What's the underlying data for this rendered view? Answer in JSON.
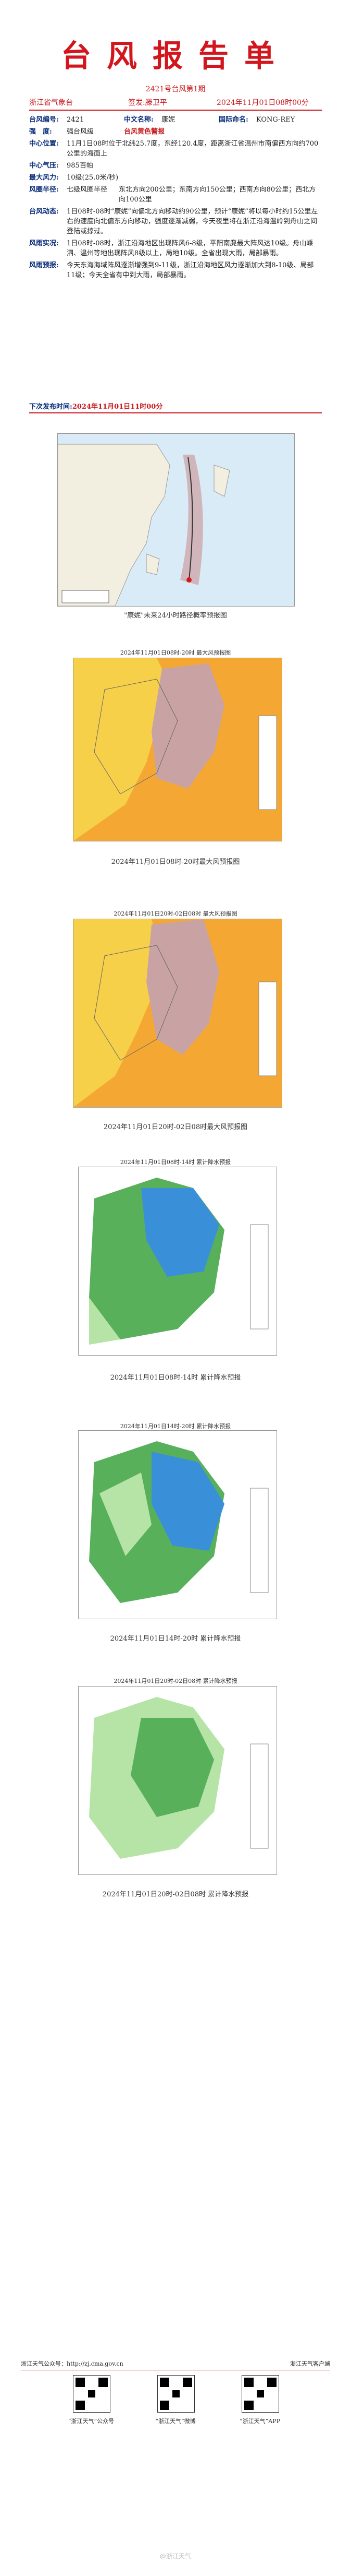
{
  "header": {
    "title": "台风报告单",
    "issue": "2421号台风第1期",
    "issuer": "浙江省气象台",
    "signer": "签发:滕卫平",
    "time": "2024年11月01日08时00分"
  },
  "info": {
    "number_label": "台风编号:",
    "number": "2421",
    "cn_name_label": "中文名称:",
    "cn_name": "康妮",
    "intl_name_label": "国际命名:",
    "intl_name": "KONG-REY",
    "strength_label": "强　度:",
    "strength": "强台风级",
    "warning": "台风黄色警报",
    "center_label": "中心位置:",
    "center": "11月1日08时位于北纬25.7度，东经120.4度，距离浙江省温州市南偏西方向约700公里的海面上",
    "pressure_label": "中心气压:",
    "pressure": "985百帕",
    "wind_label": "最大风力:",
    "wind": "10级(25.0米/秒)",
    "radius_label": "风圈半径:",
    "radius_1": "七级风圈半径",
    "radius_1_detail": "东北方向200公里；东南方向150公里；西南方向80公里；西北方向100公里",
    "forecast_label": "台风动态:",
    "forecast": "1日08时-08时“康妮”向偏北方向移动约90公里，预计“康妮”将以每小时约15公里左右的速度向北偏东方向移动，强度逐渐减弱，今天夜里将在浙江沿海温岭到舟山之间登陆或掠过。",
    "impact_label": "风雨实况:",
    "impact": "1日08时-08时，浙江沿海地区出现阵风6-8级，平阳南麂最大阵风达10级。舟山嵊泗、温州等地出现阵风8级以上，局地10级。全省出现大雨，局部暴雨。",
    "outlook_label": "风雨预报:",
    "outlook": "今天东海海域阵风逐渐增强到9-11级，浙江沿海地区风力逐渐加大到8-10级、局部11级；今天全省有中到大雨，局部暴雨。"
  },
  "release_label": "下次发布时间:",
  "release_time": "2024年11月01日11时00分",
  "captions": {
    "track": "\"康妮\"未来24小时路径概率预报图",
    "wind1_title": "2024年11月01日08时-20时 最大风预报图",
    "wind1": "2024年11月01日08时-20时最大风预报图",
    "wind2_title": "2024年11月01日20时-02日08时 最大风预报图",
    "wind2": "2024年11月01日20时-02日08时最大风预报图",
    "rain1_title": "2024年11月01日08时-14时 累计降水预报",
    "rain1": "2024年11月01日08时-14时 累计降水预报",
    "rain2_title": "2024年11月01日14时-20时 累计降水预报",
    "rain2": "2024年11月01日14时-20时 累计降水预报",
    "rain3_title": "2024年11月01日20时-02日08时 累计降水预报",
    "rain3": "2024年11月01日20时-02日08时 累计降水预报"
  },
  "bottom": {
    "site": "浙江天气公众号：http://zj.cma.gov.cn",
    "app": "浙江天气客户端",
    "qr1": "“浙江天气”公众号",
    "qr2": "“浙江天气”微博",
    "qr3": "“浙江天气”APP"
  },
  "watermark": "@浙江天气"
}
